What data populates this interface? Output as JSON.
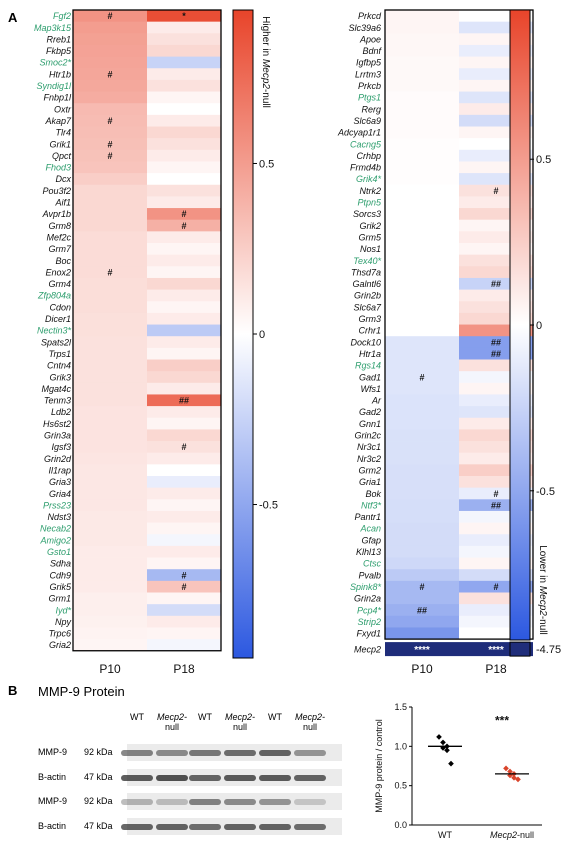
{
  "panel_a_label": "A",
  "panel_b_label": "B",
  "left_heatmap": {
    "genes": [
      {
        "name": "Fgf2",
        "green": true,
        "p10": 0.55,
        "p18": 0.9,
        "p10_mark": "#",
        "p18_mark": "*"
      },
      {
        "name": "Map3k15",
        "green": true,
        "p10": 0.5,
        "p18": 0.1
      },
      {
        "name": "Rreb1",
        "green": false,
        "p10": 0.48,
        "p18": 0.15
      },
      {
        "name": "Fkbp5",
        "green": false,
        "p10": 0.47,
        "p18": 0.2
      },
      {
        "name": "Smoc2*",
        "green": true,
        "p10": 0.46,
        "p18": -0.25
      },
      {
        "name": "Htr1b",
        "green": false,
        "p10": 0.45,
        "p18": 0.1,
        "p10_mark": "#"
      },
      {
        "name": "Syndig1l",
        "green": true,
        "p10": 0.44,
        "p18": 0.15
      },
      {
        "name": "Fnbp1l",
        "green": false,
        "p10": 0.42,
        "p18": 0.05
      },
      {
        "name": "Oxtr",
        "green": false,
        "p10": 0.35,
        "p18": 0.0
      },
      {
        "name": "Akap7",
        "green": false,
        "p10": 0.34,
        "p18": 0.1,
        "p10_mark": "#"
      },
      {
        "name": "Tlr4",
        "green": false,
        "p10": 0.33,
        "p18": 0.2
      },
      {
        "name": "Grik1",
        "green": false,
        "p10": 0.32,
        "p18": 0.15,
        "p10_mark": "#"
      },
      {
        "name": "Qpct",
        "green": false,
        "p10": 0.31,
        "p18": 0.1,
        "p10_mark": "#"
      },
      {
        "name": "Fhod3",
        "green": true,
        "p10": 0.3,
        "p18": 0.05
      },
      {
        "name": "Dcx",
        "green": false,
        "p10": 0.25,
        "p18": 0.0
      },
      {
        "name": "Pou3f2",
        "green": false,
        "p10": 0.2,
        "p18": 0.15
      },
      {
        "name": "Aif1",
        "green": false,
        "p10": 0.2,
        "p18": 0.1
      },
      {
        "name": "Avpr1b",
        "green": false,
        "p10": 0.2,
        "p18": 0.55,
        "p18_mark": "#"
      },
      {
        "name": "Grm8",
        "green": false,
        "p10": 0.2,
        "p18": 0.4,
        "p18_mark": "#"
      },
      {
        "name": "Mef2c",
        "green": false,
        "p10": 0.18,
        "p18": 0.1
      },
      {
        "name": "Grm7",
        "green": false,
        "p10": 0.18,
        "p18": 0.05
      },
      {
        "name": "Boc",
        "green": false,
        "p10": 0.18,
        "p18": 0.1
      },
      {
        "name": "Enox2",
        "green": false,
        "p10": 0.18,
        "p18": 0.05,
        "p10_mark": "#"
      },
      {
        "name": "Grm4",
        "green": false,
        "p10": 0.17,
        "p18": 0.2
      },
      {
        "name": "Zfp804a",
        "green": true,
        "p10": 0.17,
        "p18": 0.1
      },
      {
        "name": "Cdon",
        "green": false,
        "p10": 0.17,
        "p18": 0.05
      },
      {
        "name": "Dicer1",
        "green": false,
        "p10": 0.16,
        "p18": 0.1
      },
      {
        "name": "Nectin3*",
        "green": true,
        "p10": 0.16,
        "p18": -0.3
      },
      {
        "name": "Spats2l",
        "green": false,
        "p10": 0.15,
        "p18": 0.1
      },
      {
        "name": "Trps1",
        "green": false,
        "p10": 0.15,
        "p18": 0.05
      },
      {
        "name": "Cntn4",
        "green": false,
        "p10": 0.15,
        "p18": 0.25
      },
      {
        "name": "Grik3",
        "green": false,
        "p10": 0.15,
        "p18": 0.2
      },
      {
        "name": "Mgat4c",
        "green": false,
        "p10": 0.15,
        "p18": 0.1
      },
      {
        "name": "Tenm3",
        "green": false,
        "p10": 0.15,
        "p18": 0.75,
        "p18_mark": "##"
      },
      {
        "name": "Ldb2",
        "green": false,
        "p10": 0.14,
        "p18": 0.1
      },
      {
        "name": "Hs6st2",
        "green": false,
        "p10": 0.14,
        "p18": 0.05
      },
      {
        "name": "Grin3a",
        "green": false,
        "p10": 0.14,
        "p18": 0.2
      },
      {
        "name": "Igsf3",
        "green": false,
        "p10": 0.14,
        "p18": 0.15,
        "p18_mark": "#"
      },
      {
        "name": "Grin2d",
        "green": false,
        "p10": 0.13,
        "p18": 0.1
      },
      {
        "name": "Il1rap",
        "green": false,
        "p10": 0.12,
        "p18": 0.0
      },
      {
        "name": "Gria3",
        "green": false,
        "p10": 0.12,
        "p18": -0.1
      },
      {
        "name": "Gria4",
        "green": false,
        "p10": 0.12,
        "p18": 0.1
      },
      {
        "name": "Prss23",
        "green": true,
        "p10": 0.12,
        "p18": 0.05
      },
      {
        "name": "Ndst3",
        "green": false,
        "p10": 0.11,
        "p18": 0.1
      },
      {
        "name": "Necab2",
        "green": true,
        "p10": 0.11,
        "p18": 0.05
      },
      {
        "name": "Amigo2",
        "green": true,
        "p10": 0.11,
        "p18": -0.05
      },
      {
        "name": "Gsto1",
        "green": true,
        "p10": 0.1,
        "p18": 0.1
      },
      {
        "name": "Sdha",
        "green": false,
        "p10": 0.1,
        "p18": 0.05
      },
      {
        "name": "Cdh9",
        "green": false,
        "p10": 0.1,
        "p18": -0.4,
        "p18_mark": "#"
      },
      {
        "name": "Grik5",
        "green": false,
        "p10": 0.1,
        "p18": 0.3,
        "p18_mark": "#"
      },
      {
        "name": "Grm1",
        "green": false,
        "p10": 0.08,
        "p18": 0.05
      },
      {
        "name": "Iyd*",
        "green": true,
        "p10": 0.08,
        "p18": -0.2
      },
      {
        "name": "Npy",
        "green": false,
        "p10": 0.07,
        "p18": 0.1
      },
      {
        "name": "Trpc6",
        "green": false,
        "p10": 0.06,
        "p18": 0.05
      },
      {
        "name": "Gria2",
        "green": false,
        "p10": 0.05,
        "p18": -0.05
      }
    ],
    "col_labels": [
      "P10",
      "P18"
    ]
  },
  "left_colorbar": {
    "ticks": [
      "0.5",
      "0",
      "-0.5"
    ],
    "title_prefix": "Higher in ",
    "title_italic": "Mecp2",
    "title_suffix": "-null"
  },
  "right_heatmap": {
    "genes": [
      {
        "name": "Prkcd",
        "green": false,
        "p10": 0.05,
        "p18": 0.0
      },
      {
        "name": "Slc39a6",
        "green": false,
        "p10": 0.05,
        "p18": -0.15
      },
      {
        "name": "Apoe",
        "green": false,
        "p10": 0.04,
        "p18": 0.05
      },
      {
        "name": "Bdnf",
        "green": false,
        "p10": 0.04,
        "p18": -0.1
      },
      {
        "name": "Igfbp5",
        "green": false,
        "p10": 0.03,
        "p18": 0.05
      },
      {
        "name": "Lrrtm3",
        "green": false,
        "p10": 0.03,
        "p18": -0.1
      },
      {
        "name": "Prkcb",
        "green": false,
        "p10": 0.03,
        "p18": 0.05
      },
      {
        "name": "Ptgs1",
        "green": true,
        "p10": 0.02,
        "p18": -0.15
      },
      {
        "name": "Rerg",
        "green": false,
        "p10": 0.02,
        "p18": 0.1
      },
      {
        "name": "Slc6a9",
        "green": false,
        "p10": 0.02,
        "p18": -0.2
      },
      {
        "name": "Adcyap1r1",
        "green": false,
        "p10": 0.02,
        "p18": 0.05
      },
      {
        "name": "Cacng5",
        "green": true,
        "p10": 0.01,
        "p18": 0.0
      },
      {
        "name": "Crhbp",
        "green": false,
        "p10": 0.01,
        "p18": -0.1
      },
      {
        "name": "Frmd4b",
        "green": false,
        "p10": 0.01,
        "p18": 0.05
      },
      {
        "name": "Grik4*",
        "green": true,
        "p10": 0.01,
        "p18": -0.15
      },
      {
        "name": "Ntrk2",
        "green": false,
        "p10": 0.0,
        "p18": 0.15,
        "p18_mark": "#"
      },
      {
        "name": "Ptpn5",
        "green": true,
        "p10": 0.0,
        "p18": 0.1
      },
      {
        "name": "Sorcs3",
        "green": false,
        "p10": 0.0,
        "p18": 0.2
      },
      {
        "name": "Grik2",
        "green": false,
        "p10": 0.0,
        "p18": 0.05
      },
      {
        "name": "Grm5",
        "green": false,
        "p10": 0.0,
        "p18": 0.1
      },
      {
        "name": "Nos1",
        "green": false,
        "p10": 0.0,
        "p18": 0.05
      },
      {
        "name": "Tex40*",
        "green": true,
        "p10": 0.0,
        "p18": 0.15
      },
      {
        "name": "Thsd7a",
        "green": false,
        "p10": 0.0,
        "p18": 0.2
      },
      {
        "name": "Galntl6",
        "green": false,
        "p10": 0.0,
        "p18": -0.25,
        "p18_mark": "##"
      },
      {
        "name": "Grin2b",
        "green": false,
        "p10": 0.0,
        "p18": 0.1
      },
      {
        "name": "Slc6a7",
        "green": false,
        "p10": 0.0,
        "p18": 0.15
      },
      {
        "name": "Grm3",
        "green": false,
        "p10": 0.0,
        "p18": 0.2
      },
      {
        "name": "Crhr1",
        "green": false,
        "p10": 0.0,
        "p18": 0.55
      },
      {
        "name": "Dock10",
        "green": false,
        "p10": -0.15,
        "p18": -0.55,
        "p18_mark": "##"
      },
      {
        "name": "Htr1a",
        "green": false,
        "p10": -0.15,
        "p18": -0.55,
        "p18_mark": "##"
      },
      {
        "name": "Rgs14",
        "green": true,
        "p10": -0.15,
        "p18": 0.15
      },
      {
        "name": "Gad1",
        "green": false,
        "p10": -0.15,
        "p18": -0.05,
        "p10_mark": "#"
      },
      {
        "name": "Wfs1",
        "green": false,
        "p10": -0.15,
        "p18": 0.05
      },
      {
        "name": "Ar",
        "green": false,
        "p10": -0.16,
        "p18": -0.1
      },
      {
        "name": "Gad2",
        "green": false,
        "p10": -0.16,
        "p18": -0.15
      },
      {
        "name": "Gnn1",
        "green": false,
        "p10": -0.16,
        "p18": 0.1
      },
      {
        "name": "Grin2c",
        "green": false,
        "p10": -0.17,
        "p18": 0.2
      },
      {
        "name": "Nr3c1",
        "green": false,
        "p10": -0.17,
        "p18": 0.15
      },
      {
        "name": "Nr3c2",
        "green": false,
        "p10": -0.17,
        "p18": 0.1
      },
      {
        "name": "Grm2",
        "green": false,
        "p10": -0.18,
        "p18": 0.25
      },
      {
        "name": "Gria1",
        "green": false,
        "p10": -0.18,
        "p18": 0.15
      },
      {
        "name": "Bok",
        "green": false,
        "p10": -0.18,
        "p18": -0.1,
        "p18_mark": "#"
      },
      {
        "name": "Ntf3*",
        "green": true,
        "p10": -0.19,
        "p18": -0.45,
        "p18_mark": "##"
      },
      {
        "name": "Pantr1",
        "green": false,
        "p10": -0.19,
        "p18": -0.05
      },
      {
        "name": "Acan",
        "green": true,
        "p10": -0.2,
        "p18": 0.05
      },
      {
        "name": "Gfap",
        "green": false,
        "p10": -0.2,
        "p18": -0.1
      },
      {
        "name": "Klhl13",
        "green": false,
        "p10": -0.2,
        "p18": -0.05
      },
      {
        "name": "Ctsc",
        "green": true,
        "p10": -0.22,
        "p18": 0.05
      },
      {
        "name": "Pvalb",
        "green": false,
        "p10": -0.3,
        "p18": -0.2
      },
      {
        "name": "Spink8*",
        "green": true,
        "p10": -0.4,
        "p18": -0.5,
        "p10_mark": "#",
        "p18_mark": "#"
      },
      {
        "name": "Grin2a",
        "green": false,
        "p10": -0.4,
        "p18": 0.15
      },
      {
        "name": "Pcp4*",
        "green": true,
        "p10": -0.45,
        "p18": -0.1,
        "p10_mark": "##"
      },
      {
        "name": "Strip2",
        "green": true,
        "p10": -0.5,
        "p18": -0.05
      },
      {
        "name": "Fxyd1",
        "green": false,
        "p10": -0.6,
        "p18": 0.0
      }
    ],
    "mecp2_row": {
      "name": "Mecp2",
      "p10_mark": "****",
      "p18_mark": "****"
    },
    "col_labels": [
      "P10",
      "P18"
    ]
  },
  "right_colorbar": {
    "ticks": [
      "0.5",
      "0",
      "-0.5"
    ],
    "title_prefix": "Lower in ",
    "title_italic": "Mecp2",
    "title_suffix": "-null",
    "extra_tick": "-4.75"
  },
  "blot": {
    "title": "MMP-9 Protein",
    "lanes": [
      {
        "label": "WT",
        "italic": false
      },
      {
        "label": "Mecp2-",
        "label2": "null",
        "italic": true
      },
      {
        "label": "WT",
        "italic": false
      },
      {
        "label": "Mecp2-",
        "label2": "null",
        "italic": true
      },
      {
        "label": "WT",
        "italic": false
      },
      {
        "label": "Mecp2-",
        "label2": "null",
        "italic": true
      }
    ],
    "rows": [
      {
        "protein": "MMP-9",
        "size": "92 kDa"
      },
      {
        "protein": "B-actin",
        "size": "47 kDa"
      },
      {
        "protein": "MMP-9",
        "size": "92 kDa"
      },
      {
        "protein": "B-actin",
        "size": "47 kDa"
      }
    ]
  },
  "chart_data": {
    "type": "scatter",
    "title": "",
    "ylabel": "MMP-9 protein / control",
    "xlabel": "",
    "categories": [
      "WT",
      "Mecp2-null"
    ],
    "ylim": [
      0.0,
      1.5
    ],
    "yticks": [
      "0.0",
      "0.5",
      "1.0",
      "1.5"
    ],
    "significance": "***",
    "series": [
      {
        "name": "WT",
        "color": "#000000",
        "values": [
          1.12,
          1.05,
          1.0,
          0.98,
          0.95,
          0.78
        ],
        "mean": 1.0
      },
      {
        "name": "Mecp2-null",
        "color": "#d9442b",
        "values": [
          0.72,
          0.68,
          0.65,
          0.63,
          0.6,
          0.58
        ],
        "mean": 0.65
      }
    ]
  },
  "colors": {
    "green_label": "#2e9e6e",
    "mecp2_row": "#1f2d7a",
    "high": "#e8442a",
    "low": "#2c58e0"
  }
}
